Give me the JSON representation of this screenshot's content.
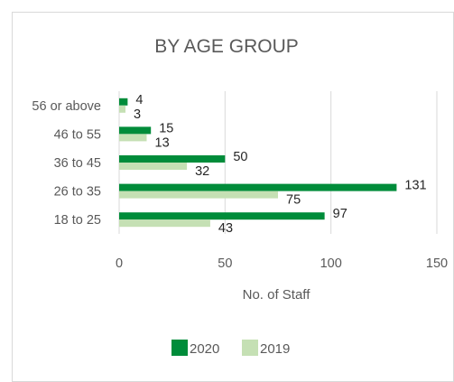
{
  "chart_data": {
    "type": "bar",
    "orientation": "horizontal",
    "title": "BY AGE GROUP",
    "categories": [
      "56 or above",
      "46 to 55",
      "36 to 45",
      "26 to 35",
      "18 to 25"
    ],
    "series": [
      {
        "name": "2020",
        "color": "#008c3a",
        "values": [
          4,
          15,
          50,
          131,
          97
        ]
      },
      {
        "name": "2019",
        "color": "#c5e0b4",
        "values": [
          3,
          13,
          32,
          75,
          43
        ]
      }
    ],
    "xlabel": "No. of Staff",
    "ylabel": "",
    "xlim": [
      0,
      150
    ],
    "xticks": [
      "0",
      "50",
      "100",
      "150"
    ],
    "grid": true,
    "legend_position": "bottom"
  }
}
